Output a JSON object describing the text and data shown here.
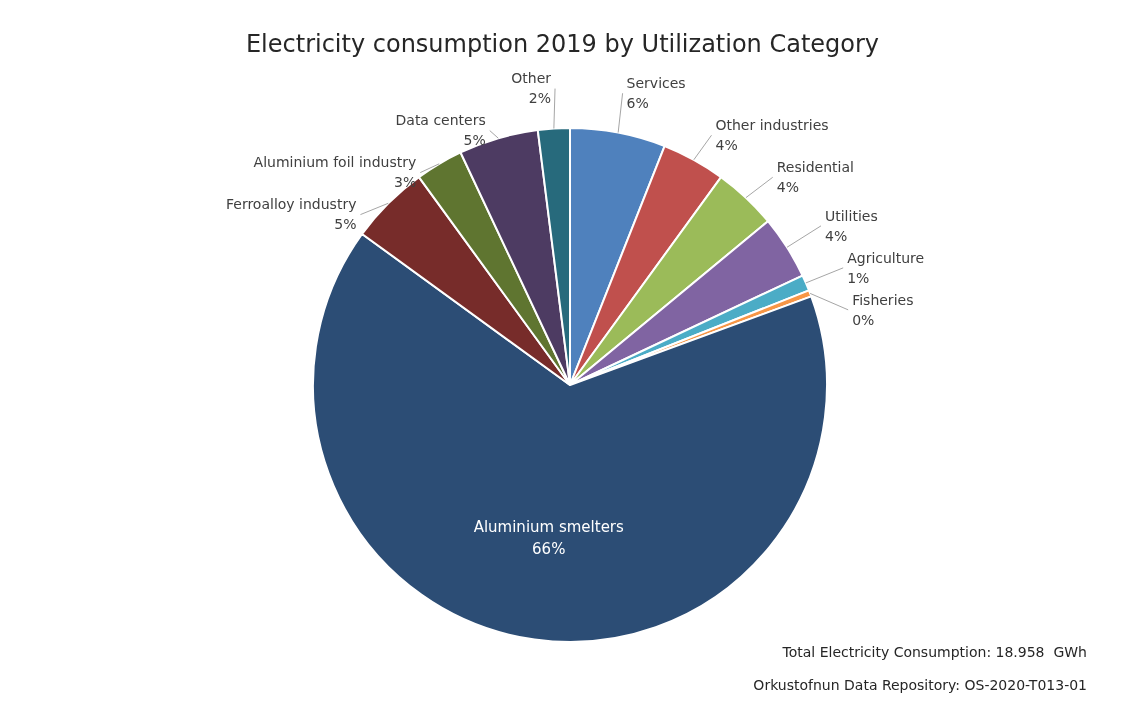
{
  "chart_data": {
    "type": "pie",
    "title": "Electricity consumption 2019 by Utilization Category",
    "categories": [
      "Services",
      "Other industries",
      "Residential",
      "Utilities",
      "Agriculture",
      "Fisheries",
      "Aluminium smelters",
      "Ferroalloy industry",
      "Aluminium foil industry",
      "Data centers",
      "Other"
    ],
    "values": [
      6,
      4,
      4,
      4,
      1,
      0.4,
      65.6,
      5,
      3,
      5,
      2
    ],
    "value_labels": [
      "6%",
      "4%",
      "4%",
      "4%",
      "1%",
      "0%",
      "66%",
      "5%",
      "3%",
      "5%",
      "2%"
    ],
    "colors": [
      "#4f81bd",
      "#c0504d",
      "#9bbb59",
      "#8064a2",
      "#4bacc6",
      "#f79646",
      "#2c4d75",
      "#772c2a",
      "#5f7530",
      "#4d3b62",
      "#276a7c"
    ],
    "annotations": [
      "Total Electricity Consumption: 18.958  GWh",
      "Orkustofnun Data Repository: OS-2020-T013-01"
    ],
    "legend": false
  }
}
